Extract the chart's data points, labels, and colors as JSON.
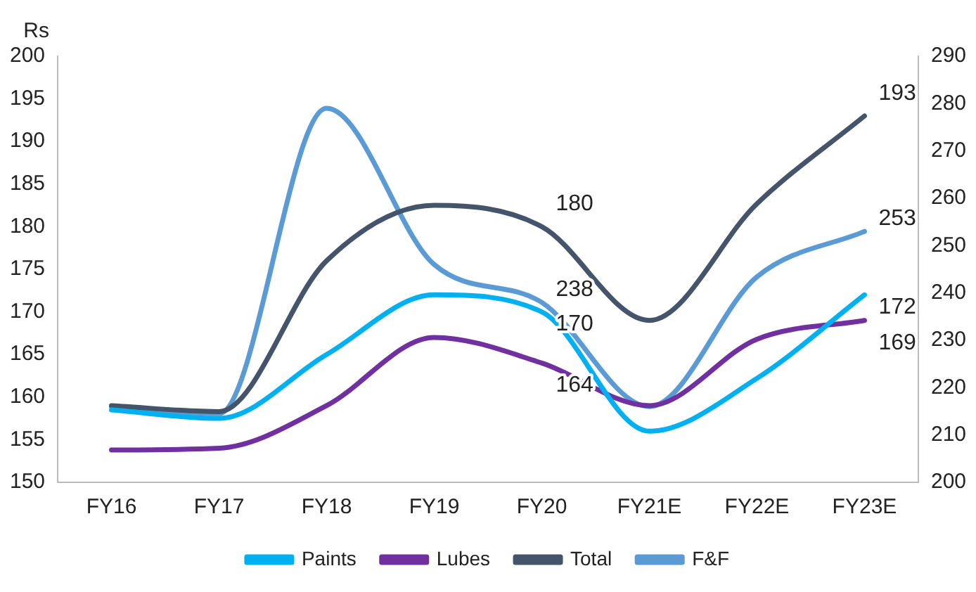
{
  "chart_data": {
    "type": "line",
    "ylabel": "Rs",
    "categories": [
      "FY16",
      "FY17",
      "FY18",
      "FY19",
      "FY20",
      "FY21E",
      "FY22E",
      "FY23E"
    ],
    "series": [
      {
        "name": "Paints",
        "color": "#00b0f0",
        "values": [
          158.5,
          157.5,
          165,
          172,
          170,
          156,
          162.2,
          172
        ],
        "value_labels": [
          null,
          null,
          null,
          null,
          "170",
          null,
          null,
          "172"
        ]
      },
      {
        "name": "Lubes",
        "color": "#7030a0",
        "values": [
          153.8,
          154,
          159,
          167,
          164,
          159,
          166.8,
          169
        ],
        "value_labels": [
          null,
          null,
          null,
          null,
          "164",
          null,
          null,
          "169"
        ]
      },
      {
        "name": "Total",
        "color": "#44546a",
        "values": [
          159,
          158.3,
          176,
          182.5,
          180,
          169,
          182.7,
          193
        ],
        "value_labels": [
          null,
          null,
          null,
          null,
          "180",
          null,
          null,
          "193"
        ]
      },
      {
        "name": "F&F",
        "color": "#5b9bd5",
        "axis": "y2",
        "values": [
          216,
          214.5,
          279,
          246,
          238,
          216,
          243.4,
          253
        ],
        "value_labels": [
          null,
          null,
          null,
          null,
          "238",
          null,
          null,
          "253"
        ]
      }
    ],
    "ylim": [
      150,
      200
    ],
    "yticks": [
      150,
      155,
      160,
      165,
      170,
      175,
      180,
      185,
      190,
      195,
      200
    ],
    "y2lim": [
      200,
      290
    ],
    "y2ticks": [
      200,
      210,
      220,
      230,
      240,
      250,
      260,
      270,
      280,
      290
    ],
    "grid": false,
    "legend": "bottom",
    "marker": "none",
    "line_style": "solid"
  }
}
